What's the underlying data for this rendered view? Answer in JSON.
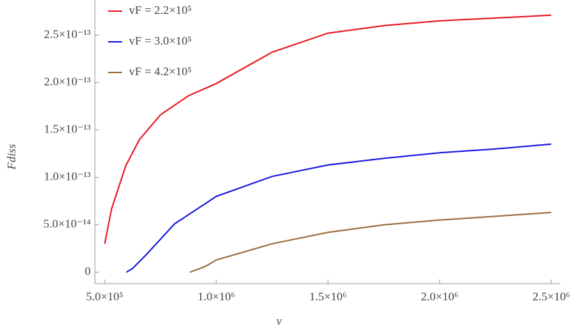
{
  "chart_data": {
    "type": "line",
    "x_label": "ν",
    "y_label": "Fdiss",
    "xlim": [
      456000,
      2540000
    ],
    "ylim": [
      -1.2e-14,
      2.87e-13
    ],
    "xticks": [
      {
        "value": 500000,
        "label": "5.0×10⁵"
      },
      {
        "value": 1000000,
        "label": "1.0×10⁶"
      },
      {
        "value": 1500000,
        "label": "1.5×10⁶"
      },
      {
        "value": 2000000,
        "label": "2.0×10⁶"
      },
      {
        "value": 2500000,
        "label": "2.5×10⁶"
      }
    ],
    "yticks": [
      0,
      {
        "value": 5e-14,
        "label": "5.0×10⁻¹⁴"
      },
      {
        "value": 1e-13,
        "label": "1.0×10⁻¹³"
      },
      {
        "value": 1.5e-13,
        "label": "1.5×10⁻¹³"
      },
      {
        "value": 2e-13,
        "label": "2.0×10⁻¹³"
      },
      {
        "value": 2.5e-13,
        "label": "2.5×10⁻¹³"
      }
    ],
    "legend": "top-left",
    "series": [
      {
        "name": "vF = 2.2×10⁵",
        "color": "#e8141c",
        "x": [
          500000,
          531000,
          594000,
          656000,
          750000,
          875000,
          1000000,
          1250000,
          1500000,
          1750000,
          2000000,
          2250000,
          2500000
        ],
        "values": [
          3e-14,
          6.7e-14,
          1.12e-13,
          1.4e-13,
          1.66e-13,
          1.86e-13,
          1.99e-13,
          2.32e-13,
          2.52e-13,
          2.6e-13,
          2.65e-13,
          2.68e-13,
          2.71e-13
        ]
      },
      {
        "name": "vF = 3.0×10⁵",
        "color": "#1414e0",
        "x": [
          597000,
          625000,
          688000,
          813000,
          1000000,
          1250000,
          1500000,
          1750000,
          2000000,
          2250000,
          2500000
        ],
        "values": [
          0,
          4e-15,
          1.9e-14,
          5.1e-14,
          8e-14,
          1.01e-13,
          1.13e-13,
          1.2e-13,
          1.26e-13,
          1.3e-13,
          1.35e-13
        ]
      },
      {
        "name": "vF = 4.2×10⁵",
        "color": "#9a6a3a",
        "x": [
          881000,
          950000,
          1000000,
          1250000,
          1500000,
          1750000,
          2000000,
          2250000,
          2500000
        ],
        "values": [
          0,
          6e-15,
          1.3e-14,
          3e-14,
          4.2e-14,
          5e-14,
          5.5e-14,
          5.9e-14,
          6.3e-14
        ]
      }
    ]
  }
}
